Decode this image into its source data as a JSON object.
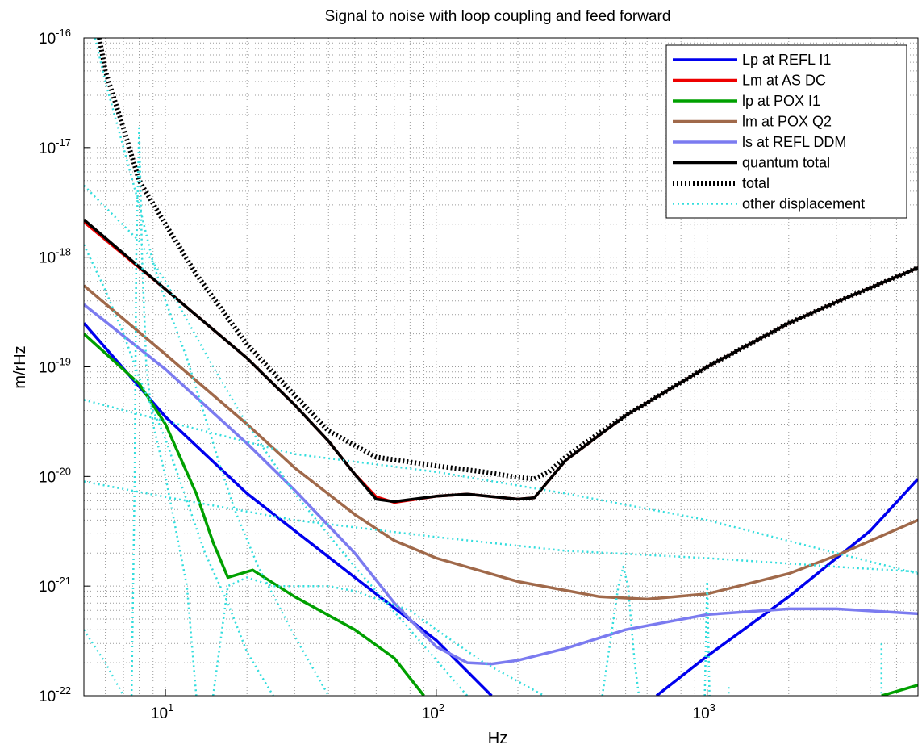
{
  "chart_data": {
    "type": "line",
    "title": "Signal to noise with loop coupling and feed forward",
    "xlabel": "Hz",
    "ylabel": "m/rHz",
    "xscale": "log",
    "yscale": "log",
    "xlim": [
      5,
      6000
    ],
    "ylim": [
      1e-22,
      1e-16
    ],
    "x_ticks": [
      {
        "value": 10,
        "base": "10",
        "exp": "1"
      },
      {
        "value": 100,
        "base": "10",
        "exp": "2"
      },
      {
        "value": 1000,
        "base": "10",
        "exp": "3"
      }
    ],
    "y_ticks": [
      {
        "value": 1e-22,
        "base": "10",
        "exp": "-22"
      },
      {
        "value": 1e-21,
        "base": "10",
        "exp": "-21"
      },
      {
        "value": 1e-20,
        "base": "10",
        "exp": "-20"
      },
      {
        "value": 1e-19,
        "base": "10",
        "exp": "-19"
      },
      {
        "value": 1e-18,
        "base": "10",
        "exp": "-18"
      },
      {
        "value": 1e-17,
        "base": "10",
        "exp": "-17"
      },
      {
        "value": 1e-16,
        "base": "10",
        "exp": "-16"
      }
    ],
    "grid": "major and minor, dotted",
    "legend_position": "top-right",
    "series": [
      {
        "name": "Lp at REFL I1",
        "color": "#0000ee",
        "style": "solid",
        "width": 3.5,
        "points": [
          [
            5,
            2.5e-19
          ],
          [
            10,
            3.5e-20
          ],
          [
            20,
            7e-21
          ],
          [
            50,
            1.2e-21
          ],
          [
            100,
            3.2e-22
          ],
          [
            160,
            1e-22
          ]
        ]
      },
      {
        "name": "Lp at REFL I1 (high)",
        "legend": false,
        "color": "#0000ee",
        "style": "solid",
        "width": 3.5,
        "points": [
          [
            650,
            1e-22
          ],
          [
            1000,
            2.3e-22
          ],
          [
            2000,
            8e-22
          ],
          [
            4000,
            3.2e-21
          ],
          [
            6000,
            9.5e-21
          ]
        ]
      },
      {
        "name": "Lm at AS DC",
        "color": "#ee0000",
        "style": "solid",
        "width": 3.5,
        "points": [
          [
            5,
            2.1e-18
          ],
          [
            10,
            5.1e-19
          ],
          [
            20,
            1.2e-19
          ],
          [
            30,
            4.5e-20
          ],
          [
            40,
            2.1e-20
          ],
          [
            50,
            1.05e-20
          ],
          [
            60,
            6.5e-21
          ],
          [
            70,
            5.8e-21
          ],
          [
            100,
            6.6e-21
          ],
          [
            130,
            6.9e-21
          ],
          [
            200,
            6.2e-21
          ],
          [
            230,
            6.4e-21
          ],
          [
            300,
            1.4e-20
          ],
          [
            500,
            3.6e-20
          ],
          [
            1000,
            1e-19
          ],
          [
            2000,
            2.5e-19
          ],
          [
            3000,
            3.9e-19
          ],
          [
            6000,
            8e-19
          ]
        ]
      },
      {
        "name": "lp at POX I1",
        "color": "#00a000",
        "style": "solid",
        "width": 3.5,
        "points": [
          [
            5,
            2e-19
          ],
          [
            8,
            7e-20
          ],
          [
            10,
            3e-20
          ],
          [
            13,
            7e-21
          ],
          [
            15,
            2.5e-21
          ],
          [
            17,
            1.2e-21
          ],
          [
            21,
            1.4e-21
          ],
          [
            30,
            8e-22
          ],
          [
            50,
            4e-22
          ],
          [
            70,
            2.2e-22
          ],
          [
            90,
            1e-22
          ]
        ]
      },
      {
        "name": "lp at POX I1 (high)",
        "legend": false,
        "color": "#00a000",
        "style": "solid",
        "width": 3.5,
        "points": [
          [
            4400,
            1e-22
          ],
          [
            6000,
            1.25e-22
          ]
        ]
      },
      {
        "name": "lm at POX Q2",
        "color": "#a0694a",
        "style": "solid",
        "width": 3.5,
        "points": [
          [
            5,
            5.5e-19
          ],
          [
            10,
            1.3e-19
          ],
          [
            20,
            3e-20
          ],
          [
            30,
            1.2e-20
          ],
          [
            50,
            4.5e-21
          ],
          [
            70,
            2.6e-21
          ],
          [
            100,
            1.8e-21
          ],
          [
            200,
            1.1e-21
          ],
          [
            400,
            8e-22
          ],
          [
            600,
            7.6e-22
          ],
          [
            1000,
            8.5e-22
          ],
          [
            2000,
            1.3e-21
          ],
          [
            3000,
            1.9e-21
          ],
          [
            6000,
            4e-21
          ]
        ]
      },
      {
        "name": "ls at REFL DDM",
        "color": "#7b7bf0",
        "style": "solid",
        "width": 3.5,
        "points": [
          [
            5,
            3.7e-19
          ],
          [
            10,
            9.5e-20
          ],
          [
            20,
            2e-20
          ],
          [
            30,
            7.5e-21
          ],
          [
            50,
            2e-21
          ],
          [
            70,
            7e-22
          ],
          [
            100,
            2.8e-22
          ],
          [
            130,
            2e-22
          ],
          [
            160,
            1.95e-22
          ],
          [
            200,
            2.1e-22
          ],
          [
            300,
            2.7e-22
          ],
          [
            500,
            4e-22
          ],
          [
            1000,
            5.5e-22
          ],
          [
            2000,
            6.2e-22
          ],
          [
            3000,
            6.2e-22
          ],
          [
            6000,
            5.6e-22
          ]
        ]
      },
      {
        "name": "quantum total",
        "color": "#000000",
        "style": "solid",
        "width": 3.5,
        "points": [
          [
            5,
            2.2e-18
          ],
          [
            10,
            5.1e-19
          ],
          [
            20,
            1.2e-19
          ],
          [
            30,
            4.5e-20
          ],
          [
            40,
            2.1e-20
          ],
          [
            50,
            1.05e-20
          ],
          [
            60,
            6.2e-21
          ],
          [
            70,
            5.9e-21
          ],
          [
            100,
            6.6e-21
          ],
          [
            130,
            6.9e-21
          ],
          [
            200,
            6.2e-21
          ],
          [
            230,
            6.4e-21
          ],
          [
            300,
            1.4e-20
          ],
          [
            500,
            3.6e-20
          ],
          [
            1000,
            1e-19
          ],
          [
            2000,
            2.5e-19
          ],
          [
            3000,
            3.9e-19
          ],
          [
            6000,
            8e-19
          ]
        ]
      },
      {
        "name": "total",
        "color": "#000000",
        "style": "thick-dotted",
        "width": 6,
        "points": [
          [
            5.7,
            1e-16
          ],
          [
            6,
            5e-17
          ],
          [
            7,
            1.5e-17
          ],
          [
            8,
            5e-18
          ],
          [
            10,
            2e-18
          ],
          [
            13,
            7e-19
          ],
          [
            20,
            1.6e-19
          ],
          [
            30,
            5.5e-20
          ],
          [
            40,
            2.6e-20
          ],
          [
            60,
            1.5e-20
          ],
          [
            100,
            1.25e-20
          ],
          [
            150,
            1.1e-20
          ],
          [
            200,
            9.8e-21
          ],
          [
            230,
            9.5e-21
          ],
          [
            260,
            1.1e-20
          ],
          [
            300,
            1.5e-20
          ],
          [
            400,
            2.5e-20
          ],
          [
            500,
            3.6e-20
          ],
          [
            1000,
            1e-19
          ],
          [
            2000,
            2.5e-19
          ],
          [
            3000,
            3.9e-19
          ],
          [
            6000,
            8e-19
          ]
        ]
      },
      {
        "name": "other displacement",
        "color": "#33dddd",
        "style": "dotted",
        "width": 2.5,
        "points": [
          [
            5,
            4.5e-18
          ],
          [
            8,
            1.4e-18
          ],
          [
            10,
            6e-19
          ],
          [
            15,
            1e-19
          ],
          [
            20,
            3e-20
          ],
          [
            30,
            7e-21
          ],
          [
            50,
            1.5e-21
          ],
          [
            80,
            4e-22
          ],
          [
            130,
            1e-22
          ]
        ]
      },
      {
        "name": "other displacement b",
        "legend": false,
        "color": "#33dddd",
        "style": "dotted",
        "width": 2.5,
        "points": [
          [
            5,
            5e-20
          ],
          [
            10,
            3.2e-20
          ],
          [
            30,
            1.6e-20
          ],
          [
            100,
            1.1e-20
          ],
          [
            300,
            7e-21
          ],
          [
            1000,
            4e-21
          ],
          [
            3000,
            2e-21
          ],
          [
            6000,
            1.3e-21
          ]
        ]
      },
      {
        "name": "other displacement c",
        "legend": false,
        "color": "#33dddd",
        "style": "dotted",
        "width": 2.5,
        "points": [
          [
            5,
            9e-21
          ],
          [
            10,
            6.5e-21
          ],
          [
            30,
            4e-21
          ],
          [
            100,
            2.8e-21
          ],
          [
            300,
            2.1e-21
          ],
          [
            1000,
            1.8e-21
          ],
          [
            3000,
            1.5e-21
          ],
          [
            6000,
            1.35e-21
          ]
        ]
      },
      {
        "name": "other displacement d",
        "legend": false,
        "color": "#33dddd",
        "style": "dotted",
        "width": 2.5,
        "points": [
          [
            5.5,
            1e-16
          ],
          [
            6,
            4e-17
          ],
          [
            7,
            1e-17
          ],
          [
            8,
            3e-18
          ],
          [
            9,
            9e-19
          ],
          [
            10,
            4e-19
          ],
          [
            12,
            1.2e-19
          ],
          [
            14,
            3.5e-20
          ],
          [
            16,
            1.2e-20
          ],
          [
            18,
            5e-21
          ],
          [
            22,
            1.5e-21
          ],
          [
            30,
            3.5e-22
          ],
          [
            40,
            1e-22
          ]
        ]
      },
      {
        "name": "other displacement e",
        "legend": false,
        "color": "#33dddd",
        "style": "dotted",
        "width": 2.5,
        "points": [
          [
            5,
            1.3e-18
          ],
          [
            6,
            5e-19
          ],
          [
            7,
            2e-19
          ],
          [
            8,
            8e-20
          ],
          [
            10,
            2.2e-20
          ],
          [
            12,
            6e-21
          ],
          [
            14,
            2e-21
          ],
          [
            17,
            7e-22
          ],
          [
            20,
            2.5e-22
          ],
          [
            25,
            1e-22
          ]
        ]
      },
      {
        "name": "other displacement f",
        "legend": false,
        "color": "#33dddd",
        "style": "dotted",
        "width": 2.5,
        "points": [
          [
            5,
            4e-22
          ],
          [
            6,
            2e-22
          ],
          [
            7,
            1e-22
          ]
        ]
      },
      {
        "name": "other displacement g",
        "legend": false,
        "color": "#33dddd",
        "style": "dotted",
        "width": 2.5,
        "points": [
          [
            7.5,
            1e-22
          ],
          [
            7.7,
            1e-20
          ],
          [
            7.8,
            1e-18
          ],
          [
            8,
            1.5e-17
          ],
          [
            8.2,
            1e-18
          ],
          [
            8.5,
            1e-19
          ],
          [
            9,
            3e-20
          ],
          [
            10,
            1e-20
          ],
          [
            11,
            3e-21
          ],
          [
            12,
            1e-21
          ],
          [
            13,
            1e-22
          ]
        ]
      },
      {
        "name": "other displacement h",
        "legend": false,
        "color": "#33dddd",
        "style": "dotted",
        "width": 2.5,
        "points": [
          [
            15,
            1e-22
          ],
          [
            17,
            1e-21
          ],
          [
            20,
            1.2e-21
          ],
          [
            25,
            1e-21
          ],
          [
            30,
            1e-21
          ],
          [
            40,
            1e-21
          ],
          [
            50,
            9e-22
          ],
          [
            80,
            6e-22
          ],
          [
            100,
            4e-22
          ],
          [
            150,
            2e-22
          ],
          [
            250,
            1e-22
          ]
        ]
      },
      {
        "name": "other displacement i",
        "legend": false,
        "color": "#33dddd",
        "style": "dotted",
        "width": 2.5,
        "points": [
          [
            410,
            1e-22
          ],
          [
            470,
            1e-21
          ],
          [
            490,
            1.5e-21
          ],
          [
            510,
            1e-21
          ],
          [
            540,
            2e-22
          ],
          [
            560,
            1e-22
          ]
        ]
      },
      {
        "name": "other displacement j",
        "legend": false,
        "color": "#33dddd",
        "style": "dotted",
        "width": 2.5,
        "points": [
          [
            980,
            1e-22
          ],
          [
            1000,
            1.1e-21
          ],
          [
            1020,
            1e-22
          ]
        ]
      },
      {
        "name": "other displacement k",
        "legend": false,
        "color": "#33dddd",
        "style": "dotted",
        "width": 2.5,
        "points": [
          [
            1200,
            1.2e-22
          ],
          [
            1200,
            1e-22
          ]
        ]
      },
      {
        "name": "other displacement l",
        "legend": false,
        "color": "#33dddd",
        "style": "dotted",
        "width": 2.5,
        "points": [
          [
            4400,
            3e-22
          ],
          [
            4400,
            1e-22
          ]
        ]
      }
    ]
  }
}
